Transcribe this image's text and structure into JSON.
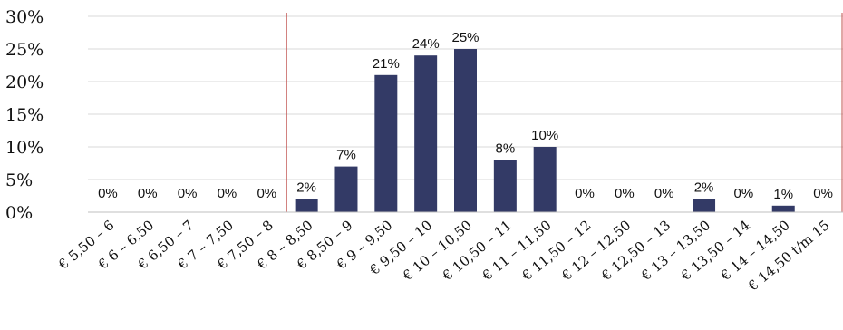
{
  "chart_data": {
    "type": "bar",
    "categories": [
      "€ 5,50 – 6",
      "€ 6 – 6,50",
      "€ 6,50 – 7",
      "€ 7 – 7,50",
      "€ 7,50 – 8",
      "€ 8 – 8,50",
      "€ 8,50 – 9",
      "€ 9 – 9,50",
      "€ 9,50 – 10",
      "€ 10 – 10,50",
      "€ 10,50 – 11",
      "€ 11 – 11,50",
      "€ 11,50 – 12",
      "€ 12 – 12,50",
      "€ 12,50 – 13",
      "€ 13 – 13,50",
      "€ 13,50 – 14",
      "€ 14 – 14,50",
      "€ 14,50 t/m 15"
    ],
    "values": [
      0,
      0,
      0,
      0,
      0,
      2,
      7,
      21,
      24,
      25,
      8,
      10,
      0,
      0,
      0,
      2,
      0,
      1,
      0
    ],
    "data_labels": [
      "0%",
      "0%",
      "0%",
      "0%",
      "0%",
      "2%",
      "7%",
      "21%",
      "24%",
      "25%",
      "8%",
      "10%",
      "0%",
      "0%",
      "0%",
      "2%",
      "0%",
      "1%",
      "0%"
    ],
    "yticks": [
      "0%",
      "5%",
      "10%",
      "15%",
      "20%",
      "25%",
      "30%"
    ],
    "ylim": [
      0,
      30
    ],
    "grid": true,
    "bar_color": "#333a66",
    "marker_color": "#c0504d",
    "reference_lines_after_category": [
      "€ 7,50 – 8",
      "€ 14,50 t/m 15"
    ]
  }
}
